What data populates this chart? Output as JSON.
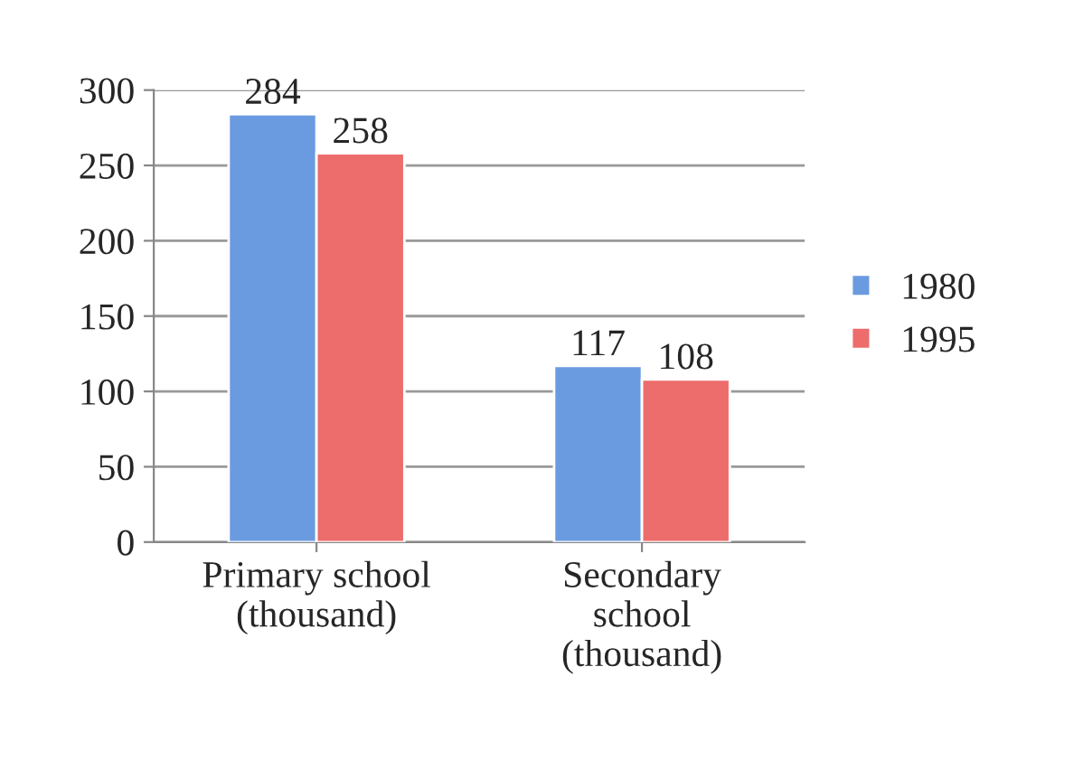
{
  "chart_data": {
    "type": "bar",
    "categories": [
      "Primary school\n(thousand)",
      "Secondary\nschool\n(thousand)"
    ],
    "series": [
      {
        "name": "1980",
        "color": "#6a9be0",
        "values": [
          284,
          117
        ]
      },
      {
        "name": "1995",
        "color": "#ec6d6b",
        "values": [
          258,
          108
        ]
      }
    ],
    "ylim": [
      0,
      300
    ],
    "yticks": [
      0,
      50,
      100,
      150,
      200,
      250,
      300
    ],
    "grid": "y",
    "legend": "right",
    "data_labels": true
  }
}
